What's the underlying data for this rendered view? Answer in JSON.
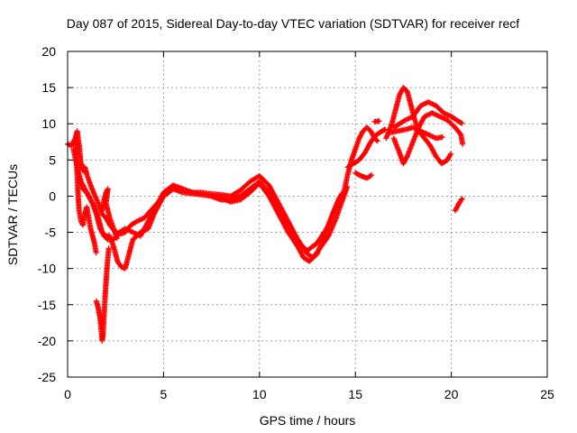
{
  "chart_data": {
    "type": "scatter",
    "title": "Day 087 of 2015, Sidereal Day-to-day VTEC variation (SDTVAR) for receiver recf",
    "xlabel": "GPS time / hours",
    "ylabel": "SDTVAR / TECUs",
    "xlim": [
      0,
      25
    ],
    "ylim": [
      -25,
      20
    ],
    "x_ticks": [
      "0",
      "5",
      "10",
      "15",
      "20",
      "25"
    ],
    "y_ticks": [
      "20",
      "15",
      "10",
      "5",
      "0",
      "-5",
      "-10",
      "-15",
      "-20",
      "-25"
    ],
    "grid": true,
    "marker": "plus",
    "color": "#ff0000",
    "series": [
      {
        "tracks": [
          [
            [
              0.0,
              7.2
            ],
            [
              0.2,
              7.0
            ],
            [
              0.4,
              8.0
            ],
            [
              0.5,
              9.0
            ],
            [
              0.6,
              7.0
            ],
            [
              0.7,
              4.5
            ],
            [
              0.8,
              3.5
            ],
            [
              0.9,
              4.0
            ],
            [
              1.0,
              3.0
            ],
            [
              1.2,
              1.5
            ],
            [
              1.4,
              0.2
            ],
            [
              1.6,
              -1.0
            ],
            [
              1.8,
              -2.5
            ],
            [
              2.0,
              -3.0
            ],
            [
              2.2,
              -4.0
            ],
            [
              2.5,
              -5.0
            ],
            [
              2.8,
              -5.2
            ],
            [
              3.0,
              -5.0
            ],
            [
              3.3,
              -4.0
            ],
            [
              3.6,
              -3.5
            ],
            [
              4.0,
              -3.0
            ],
            [
              4.5,
              -1.5
            ],
            [
              5.0,
              0.0
            ],
            [
              5.5,
              1.0
            ],
            [
              6.0,
              0.8
            ],
            [
              6.5,
              0.5
            ],
            [
              7.0,
              0.3
            ],
            [
              7.5,
              0.0
            ],
            [
              8.0,
              -0.5
            ],
            [
              8.5,
              -0.5
            ],
            [
              9.0,
              0.0
            ],
            [
              9.5,
              1.0
            ],
            [
              10.0,
              2.0
            ],
            [
              10.5,
              0.5
            ],
            [
              11.0,
              -2.0
            ],
            [
              11.5,
              -4.5
            ],
            [
              12.0,
              -6.5
            ],
            [
              12.5,
              -7.5
            ],
            [
              13.0,
              -6.5
            ],
            [
              13.5,
              -4.5
            ],
            [
              14.0,
              -1.5
            ],
            [
              14.3,
              0.5
            ]
          ],
          [
            [
              0.3,
              6.5
            ],
            [
              0.5,
              4.0
            ],
            [
              0.7,
              2.0
            ],
            [
              0.9,
              1.0
            ],
            [
              1.1,
              0.0
            ],
            [
              1.3,
              -1.0
            ],
            [
              1.5,
              -2.5
            ],
            [
              1.7,
              -4.5
            ],
            [
              1.9,
              -5.5
            ],
            [
              2.1,
              -6.0
            ],
            [
              2.4,
              -6.0
            ],
            [
              2.7,
              -5.0
            ],
            [
              3.0,
              -4.5
            ],
            [
              3.4,
              -5.0
            ],
            [
              3.8,
              -5.5
            ],
            [
              4.2,
              -3.5
            ],
            [
              4.6,
              -1.5
            ],
            [
              5.0,
              0.5
            ],
            [
              5.5,
              1.5
            ],
            [
              6.0,
              1.0
            ],
            [
              6.5,
              0.5
            ],
            [
              7.0,
              0.5
            ],
            [
              7.5,
              0.3
            ],
            [
              8.0,
              0.2
            ],
            [
              8.5,
              0.0
            ],
            [
              9.0,
              0.8
            ],
            [
              9.5,
              2.0
            ],
            [
              10.0,
              2.8
            ],
            [
              10.5,
              1.5
            ],
            [
              11.0,
              -1.0
            ],
            [
              11.5,
              -3.5
            ],
            [
              12.0,
              -6.0
            ],
            [
              12.5,
              -8.0
            ],
            [
              12.8,
              -8.5
            ],
            [
              13.2,
              -7.0
            ],
            [
              13.6,
              -5.5
            ],
            [
              14.0,
              -3.0
            ],
            [
              14.4,
              0.0
            ],
            [
              14.6,
              1.5
            ]
          ],
          [
            [
              0.6,
              2.5
            ],
            [
              0.8,
              1.0
            ],
            [
              1.0,
              0.5
            ],
            [
              1.2,
              -0.5
            ],
            [
              1.4,
              -1.5
            ],
            [
              1.6,
              -3.0
            ],
            [
              1.8,
              -5.0
            ],
            [
              2.0,
              -5.5
            ],
            [
              2.2,
              -5.5
            ],
            [
              2.4,
              -7.0
            ],
            [
              2.6,
              -9.0
            ],
            [
              2.8,
              -9.8
            ],
            [
              3.0,
              -10.0
            ],
            [
              3.2,
              -8.0
            ],
            [
              3.4,
              -6.0
            ],
            [
              3.8,
              -5.0
            ],
            [
              4.2,
              -4.5
            ],
            [
              4.5,
              -2.5
            ],
            [
              5.0,
              0.0
            ],
            [
              5.5,
              1.0
            ],
            [
              6.0,
              0.5
            ],
            [
              7.0,
              0.2
            ],
            [
              8.0,
              -0.2
            ],
            [
              8.5,
              -0.8
            ],
            [
              9.0,
              -0.5
            ],
            [
              9.5,
              0.5
            ],
            [
              10.0,
              1.8
            ],
            [
              10.5,
              0.0
            ],
            [
              11.0,
              -2.5
            ],
            [
              11.5,
              -5.0
            ],
            [
              12.0,
              -7.0
            ],
            [
              12.3,
              -8.5
            ],
            [
              12.6,
              -9.0
            ],
            [
              13.0,
              -8.0
            ],
            [
              13.4,
              -5.5
            ],
            [
              13.8,
              -2.5
            ],
            [
              14.2,
              0.0
            ]
          ],
          [
            [
              0.4,
              7.5
            ],
            [
              0.5,
              3.0
            ],
            [
              0.55,
              0.0
            ],
            [
              0.6,
              -2.0
            ],
            [
              0.7,
              -3.5
            ],
            [
              0.8,
              -4.0
            ],
            [
              0.9,
              -2.5
            ],
            [
              1.0,
              -1.5
            ],
            [
              1.1,
              -3.0
            ],
            [
              1.2,
              -4.5
            ],
            [
              1.3,
              -5.5
            ],
            [
              1.4,
              -6.5
            ],
            [
              1.5,
              -8.0
            ]
          ],
          [
            [
              1.5,
              -14.5
            ],
            [
              1.6,
              -15.5
            ],
            [
              1.7,
              -17.0
            ],
            [
              1.75,
              -18.5
            ],
            [
              1.8,
              -20.0
            ],
            [
              1.85,
              -19.0
            ],
            [
              1.9,
              -16.5
            ],
            [
              1.95,
              -14.0
            ],
            [
              2.0,
              -12.0
            ],
            [
              2.05,
              -10.0
            ],
            [
              2.1,
              -8.5
            ],
            [
              2.15,
              -7.0
            ]
          ],
          [
            [
              1.8,
              -2.0
            ],
            [
              1.9,
              -0.5
            ],
            [
              2.0,
              0.5
            ],
            [
              2.1,
              1.0
            ],
            [
              2.0,
              -1.0
            ],
            [
              2.2,
              -3.0
            ],
            [
              2.4,
              -4.5
            ],
            [
              2.6,
              -6.0
            ]
          ],
          [
            [
              14.2,
              -1.0
            ],
            [
              14.4,
              0.5
            ],
            [
              14.6,
              3.0
            ],
            [
              14.8,
              5.0
            ],
            [
              15.0,
              6.5
            ],
            [
              15.2,
              8.0
            ],
            [
              15.4,
              9.0
            ],
            [
              15.6,
              9.5
            ],
            [
              15.8,
              9.0
            ],
            [
              16.0,
              8.0
            ],
            [
              16.2,
              7.5
            ]
          ],
          [
            [
              14.6,
              4.0
            ],
            [
              14.9,
              4.5
            ],
            [
              15.2,
              5.0
            ],
            [
              15.5,
              6.0
            ],
            [
              15.8,
              7.5
            ],
            [
              16.1,
              8.5
            ],
            [
              16.4,
              9.0
            ],
            [
              16.6,
              9.3
            ]
          ],
          [
            [
              15.0,
              3.2
            ],
            [
              15.3,
              2.8
            ],
            [
              15.6,
              2.5
            ],
            [
              15.9,
              3.0
            ]
          ],
          [
            [
              16.0,
              10.3
            ],
            [
              16.3,
              10.4
            ]
          ],
          [
            [
              16.6,
              8.0
            ],
            [
              16.9,
              10.0
            ],
            [
              17.1,
              12.0
            ],
            [
              17.3,
              14.0
            ],
            [
              17.5,
              15.0
            ],
            [
              17.7,
              14.5
            ],
            [
              17.9,
              12.5
            ],
            [
              18.1,
              10.5
            ],
            [
              18.3,
              9.0
            ],
            [
              18.6,
              8.0
            ],
            [
              18.9,
              7.0
            ],
            [
              19.2,
              5.5
            ],
            [
              19.5,
              4.5
            ],
            [
              19.8,
              5.0
            ],
            [
              20.0,
              6.0
            ]
          ],
          [
            [
              17.0,
              9.5
            ],
            [
              17.3,
              10.0
            ],
            [
              17.6,
              10.5
            ],
            [
              18.0,
              11.0
            ],
            [
              18.4,
              12.5
            ],
            [
              18.8,
              13.0
            ],
            [
              19.2,
              12.5
            ],
            [
              19.6,
              11.5
            ],
            [
              20.0,
              11.0
            ],
            [
              20.4,
              10.3
            ],
            [
              20.6,
              10.0
            ]
          ],
          [
            [
              17.0,
              8.0
            ],
            [
              17.3,
              6.0
            ],
            [
              17.5,
              4.5
            ],
            [
              17.7,
              5.5
            ],
            [
              18.0,
              7.5
            ],
            [
              18.3,
              9.5
            ],
            [
              18.6,
              11.0
            ],
            [
              19.0,
              11.5
            ],
            [
              19.4,
              11.0
            ],
            [
              19.8,
              10.5
            ],
            [
              20.2,
              9.5
            ],
            [
              20.5,
              8.5
            ],
            [
              20.6,
              7.0
            ]
          ],
          [
            [
              16.8,
              8.8
            ],
            [
              17.2,
              9.0
            ],
            [
              17.6,
              9.2
            ],
            [
              18.0,
              9.5
            ],
            [
              18.4,
              9.0
            ],
            [
              18.8,
              8.5
            ],
            [
              19.2,
              8.0
            ],
            [
              19.6,
              8.2
            ]
          ],
          [
            [
              20.2,
              -2.0
            ],
            [
              20.4,
              -1.0
            ],
            [
              20.6,
              -0.2
            ]
          ]
        ]
      }
    ]
  }
}
